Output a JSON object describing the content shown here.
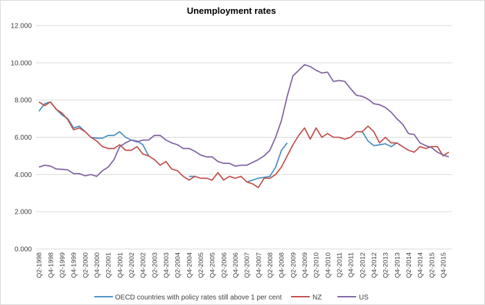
{
  "chart_data": {
    "type": "line",
    "title": "Unemployment rates",
    "xlabel": "",
    "ylabel": "",
    "ylim": [
      0,
      12
    ],
    "yticks": [
      "0.000",
      "2.000",
      "4.000",
      "6.000",
      "8.000",
      "10.000",
      "12.000"
    ],
    "grid": true,
    "legend_position": "bottom",
    "x": [
      "Q2-1998",
      "Q3-1998",
      "Q4-1998",
      "Q1-1999",
      "Q2-1999",
      "Q3-1999",
      "Q4-1999",
      "Q1-2000",
      "Q2-2000",
      "Q3-2000",
      "Q4-2000",
      "Q1-2001",
      "Q2-2001",
      "Q3-2001",
      "Q4-2001",
      "Q1-2002",
      "Q2-2002",
      "Q3-2002",
      "Q4-2002",
      "Q1-2003",
      "Q2-2003",
      "Q3-2003",
      "Q4-2003",
      "Q1-2004",
      "Q2-2004",
      "Q3-2004",
      "Q4-2004",
      "Q1-2005",
      "Q2-2005",
      "Q3-2005",
      "Q4-2005",
      "Q1-2006",
      "Q2-2006",
      "Q3-2006",
      "Q4-2006",
      "Q1-2007",
      "Q2-2007",
      "Q3-2007",
      "Q4-2007",
      "Q1-2008",
      "Q2-2008",
      "Q3-2008",
      "Q4-2008",
      "Q1-2009",
      "Q2-2009",
      "Q3-2009",
      "Q4-2009",
      "Q1-2010",
      "Q2-2010",
      "Q3-2010",
      "Q4-2010",
      "Q1-2011",
      "Q2-2011",
      "Q3-2011",
      "Q4-2011",
      "Q1-2012",
      "Q2-2012",
      "Q3-2012",
      "Q4-2012",
      "Q1-2013",
      "Q2-2013",
      "Q3-2013",
      "Q4-2013",
      "Q1-2014",
      "Q2-2014",
      "Q3-2014",
      "Q4-2014",
      "Q1-2015",
      "Q2-2015",
      "Q3-2015",
      "Q4-2015",
      "Q1-2016"
    ],
    "xtick_labels": [
      "Q2-1998",
      "Q4-1998",
      "Q2-1999",
      "Q4-1999",
      "Q2-2000",
      "Q4-2000",
      "Q2-2001",
      "Q4-2001",
      "Q2-2002",
      "Q4-2002",
      "Q2-2003",
      "Q4-2003",
      "Q2-2004",
      "Q4-2004",
      "Q2-2005",
      "Q4-2005",
      "Q2-2006",
      "Q4-2006",
      "Q2-2007",
      "Q4-2007",
      "Q2-2008",
      "Q4-2008",
      "Q2-2009",
      "Q4-2009",
      "Q2-2010",
      "Q4-2010",
      "Q2-2011",
      "Q4-2011",
      "Q2-2012",
      "Q4-2012",
      "Q2-2013",
      "Q4-2013",
      "Q2-2014",
      "Q4-2014",
      "Q2-2015",
      "Q4-2015"
    ],
    "series": [
      {
        "name": "OECD countries with policy rates still above 1 per cent",
        "color": "#4a90c4",
        "values": [
          7.4,
          7.8,
          7.9,
          7.5,
          7.2,
          7.0,
          6.5,
          6.6,
          6.3,
          6.0,
          5.95,
          5.95,
          6.1,
          6.1,
          6.3,
          6.0,
          5.85,
          5.8,
          5.6,
          5.0,
          null,
          null,
          null,
          null,
          null,
          null,
          3.9,
          3.9,
          null,
          null,
          null,
          null,
          null,
          null,
          null,
          null,
          3.6,
          3.7,
          3.8,
          3.85,
          3.9,
          4.4,
          5.3,
          5.7,
          null,
          null,
          null,
          null,
          null,
          null,
          null,
          null,
          null,
          null,
          null,
          6.3,
          6.3,
          5.8,
          5.55,
          5.6,
          5.65,
          5.5,
          5.7,
          null,
          null,
          null,
          null,
          null,
          null,
          null,
          null,
          null
        ]
      },
      {
        "name": "NZ",
        "color": "#c0504d",
        "values": [
          7.9,
          7.7,
          7.9,
          7.5,
          7.3,
          6.95,
          6.4,
          6.5,
          6.3,
          6.0,
          5.8,
          5.5,
          5.4,
          5.4,
          5.6,
          5.3,
          5.3,
          5.5,
          5.1,
          5.0,
          4.8,
          4.5,
          4.7,
          4.3,
          4.2,
          3.9,
          3.7,
          3.9,
          3.8,
          3.8,
          3.7,
          4.1,
          3.7,
          3.9,
          3.8,
          3.9,
          3.6,
          3.5,
          3.3,
          3.8,
          3.8,
          4.0,
          4.4,
          5.0,
          5.6,
          6.1,
          6.5,
          5.9,
          6.5,
          6.0,
          6.2,
          6.0,
          6.0,
          5.9,
          6.0,
          6.3,
          6.3,
          6.6,
          6.3,
          5.7,
          6.0,
          5.7,
          5.7,
          5.5,
          5.3,
          5.2,
          5.5,
          5.4,
          5.5,
          5.5,
          5.0,
          5.2
        ]
      },
      {
        "name": "US",
        "color": "#8064a2",
        "values": [
          4.4,
          4.5,
          4.45,
          4.3,
          4.28,
          4.25,
          4.05,
          4.05,
          3.93,
          4.0,
          3.9,
          4.2,
          4.4,
          4.8,
          5.5,
          5.7,
          5.85,
          5.75,
          5.85,
          5.85,
          6.1,
          6.1,
          5.85,
          5.7,
          5.6,
          5.4,
          5.4,
          5.25,
          5.05,
          4.95,
          4.95,
          4.7,
          4.6,
          4.6,
          4.45,
          4.5,
          4.5,
          4.65,
          4.8,
          5.0,
          5.3,
          6.0,
          6.9,
          8.2,
          9.3,
          9.6,
          9.9,
          9.8,
          9.6,
          9.45,
          9.5,
          9.0,
          9.05,
          9.0,
          8.6,
          8.25,
          8.2,
          8.05,
          7.8,
          7.75,
          7.6,
          7.35,
          7.0,
          6.7,
          6.2,
          6.15,
          5.7,
          5.55,
          5.45,
          5.2,
          5.05,
          4.95
        ]
      }
    ]
  }
}
